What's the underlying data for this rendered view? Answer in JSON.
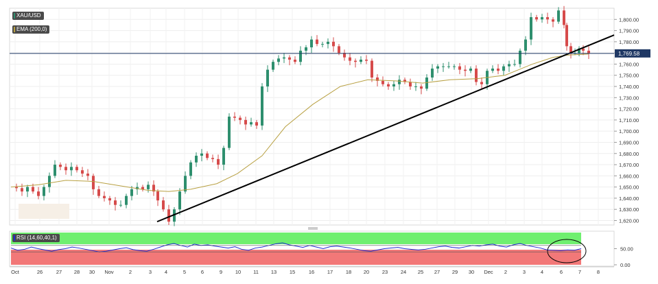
{
  "legend": {
    "symbol": "XAU/USD",
    "ema_label": "EMA (200,0)",
    "rsi_label": "RSI (14,60,40,1)",
    "symbol_color": "#4a4a4a",
    "ema_color": "#b8a042"
  },
  "price_tag": "1,769.58",
  "colors": {
    "up": "#2e8f6e",
    "down": "#d64b4b",
    "ema": "#b8a042",
    "trendline": "#000000",
    "price_line": "#1f3864",
    "rsi_line": "#1d2bd1",
    "rsi_overbought_zone": "#6fef6f",
    "rsi_oversold_zone": "#f27878"
  },
  "chart_data": {
    "type": "candlestick",
    "y_ticks": [
      "1,620.00",
      "1,630.00",
      "1,640.00",
      "1,650.00",
      "1,660.00",
      "1,670.00",
      "1,680.00",
      "1,690.00",
      "1,700.00",
      "1,710.00",
      "1,720.00",
      "1,730.00",
      "1,740.00",
      "1,750.00",
      "1,760.00",
      "1,770.00",
      "1,780.00",
      "1,790.00",
      "1,800.00"
    ],
    "ylim": [
      1616,
      1810
    ],
    "x_ticks": [
      "Oct",
      "26",
      "27",
      "28",
      "30",
      "Nov",
      "2",
      "3",
      "4",
      "5",
      "6",
      "9",
      "10",
      "11",
      "13",
      "15",
      "16",
      "17",
      "18",
      "20",
      "23",
      "24",
      "25",
      "27",
      "29",
      "30",
      "Dec",
      "2",
      "3",
      "4",
      "6",
      "7",
      "8"
    ],
    "last_price": 1769.58,
    "price_series": [
      [
        0,
        1650
      ],
      [
        8,
        1649
      ],
      [
        16,
        1646
      ],
      [
        24,
        1650
      ],
      [
        32,
        1646
      ],
      [
        40,
        1642
      ],
      [
        48,
        1650
      ],
      [
        56,
        1660
      ],
      [
        64,
        1670
      ],
      [
        72,
        1668
      ],
      [
        80,
        1665
      ],
      [
        88,
        1668
      ],
      [
        96,
        1665
      ],
      [
        104,
        1662
      ],
      [
        112,
        1660
      ],
      [
        120,
        1648
      ],
      [
        128,
        1642
      ],
      [
        136,
        1640
      ],
      [
        144,
        1638
      ],
      [
        152,
        1634
      ],
      [
        160,
        1634
      ],
      [
        168,
        1642
      ],
      [
        176,
        1648
      ],
      [
        184,
        1650
      ],
      [
        192,
        1648
      ],
      [
        200,
        1652
      ],
      [
        208,
        1646
      ],
      [
        214,
        1638
      ],
      [
        222,
        1630
      ],
      [
        230,
        1619
      ],
      [
        238,
        1630
      ],
      [
        246,
        1646
      ],
      [
        254,
        1660
      ],
      [
        262,
        1672
      ],
      [
        270,
        1678
      ],
      [
        278,
        1680
      ],
      [
        286,
        1676
      ],
      [
        294,
        1675
      ],
      [
        302,
        1670
      ],
      [
        310,
        1685
      ],
      [
        318,
        1713
      ],
      [
        326,
        1712
      ],
      [
        334,
        1710
      ],
      [
        342,
        1706
      ],
      [
        350,
        1708
      ],
      [
        358,
        1705
      ],
      [
        366,
        1740
      ],
      [
        374,
        1755
      ],
      [
        382,
        1762
      ],
      [
        390,
        1765
      ],
      [
        398,
        1766
      ],
      [
        406,
        1764
      ],
      [
        414,
        1762
      ],
      [
        422,
        1772
      ],
      [
        430,
        1775
      ],
      [
        438,
        1782
      ],
      [
        446,
        1778
      ],
      [
        454,
        1778
      ],
      [
        462,
        1780
      ],
      [
        470,
        1776
      ],
      [
        478,
        1770
      ],
      [
        486,
        1766
      ],
      [
        494,
        1763
      ],
      [
        502,
        1762
      ],
      [
        510,
        1764
      ],
      [
        518,
        1763
      ],
      [
        526,
        1748
      ],
      [
        534,
        1745
      ],
      [
        542,
        1742
      ],
      [
        550,
        1740
      ],
      [
        558,
        1742
      ],
      [
        566,
        1746
      ],
      [
        574,
        1744
      ],
      [
        582,
        1740
      ],
      [
        590,
        1740
      ],
      [
        598,
        1738
      ],
      [
        606,
        1748
      ],
      [
        614,
        1756
      ],
      [
        622,
        1758
      ],
      [
        630,
        1758
      ],
      [
        638,
        1758
      ],
      [
        646,
        1758
      ],
      [
        654,
        1755
      ],
      [
        662,
        1754
      ],
      [
        670,
        1756
      ],
      [
        678,
        1744
      ],
      [
        686,
        1742
      ],
      [
        694,
        1754
      ],
      [
        702,
        1756
      ],
      [
        710,
        1754
      ],
      [
        718,
        1758
      ],
      [
        726,
        1760
      ],
      [
        734,
        1760
      ],
      [
        742,
        1772
      ],
      [
        750,
        1782
      ],
      [
        758,
        1802
      ],
      [
        766,
        1800
      ],
      [
        774,
        1802
      ],
      [
        782,
        1800
      ],
      [
        790,
        1798
      ],
      [
        798,
        1808
      ],
      [
        806,
        1795
      ],
      [
        810,
        1776
      ],
      [
        816,
        1770
      ],
      [
        822,
        1770
      ],
      [
        828,
        1774
      ],
      [
        834,
        1772
      ],
      [
        842,
        1769.58
      ]
    ],
    "ema_200": [
      [
        0,
        1650
      ],
      [
        40,
        1652
      ],
      [
        80,
        1656
      ],
      [
        120,
        1655
      ],
      [
        160,
        1651
      ],
      [
        200,
        1647
      ],
      [
        230,
        1646
      ],
      [
        262,
        1648
      ],
      [
        300,
        1653
      ],
      [
        330,
        1662
      ],
      [
        366,
        1678
      ],
      [
        400,
        1704
      ],
      [
        440,
        1724
      ],
      [
        480,
        1740
      ],
      [
        520,
        1746
      ],
      [
        560,
        1745
      ],
      [
        600,
        1743
      ],
      [
        640,
        1746
      ],
      [
        680,
        1747
      ],
      [
        720,
        1750
      ],
      [
        760,
        1760
      ],
      [
        790,
        1766
      ],
      [
        810,
        1768
      ],
      [
        842,
        1769
      ]
    ],
    "trendline": {
      "x_start": 229,
      "y_start": 1619,
      "x_end": 895,
      "y_end": 1786
    },
    "rsi": {
      "label": "RSI (14,60,40,1)",
      "y_ticks": [
        "50.00",
        "0.00"
      ],
      "levels": [
        60,
        40
      ],
      "values": [
        52,
        45,
        48,
        55,
        50,
        46,
        42,
        47,
        50,
        55,
        52,
        48,
        44,
        40,
        42,
        46,
        50,
        53,
        47,
        44,
        42,
        48,
        55,
        62,
        66,
        60,
        55,
        64,
        60,
        62,
        58,
        55,
        52,
        56,
        48,
        45,
        52,
        55,
        60,
        65,
        68,
        62,
        58,
        54,
        60,
        55,
        50,
        56,
        58,
        55,
        52,
        48,
        44,
        42,
        46,
        50,
        52,
        54,
        50,
        48,
        46,
        48,
        52,
        56,
        58,
        54,
        52,
        56,
        60,
        58,
        62,
        64,
        58,
        55,
        62,
        66,
        60,
        56,
        52,
        46,
        45,
        44,
        46,
        45,
        50
      ]
    }
  }
}
